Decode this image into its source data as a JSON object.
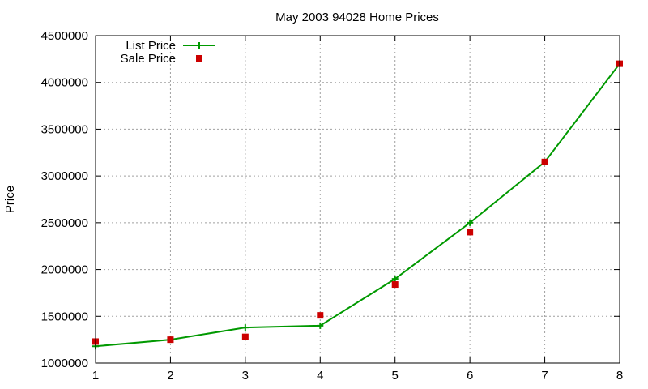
{
  "chart_data": {
    "type": "line",
    "title": "May 2003 94028 Home Prices",
    "xlabel": "",
    "ylabel": "Price",
    "x": [
      1,
      2,
      3,
      4,
      5,
      6,
      7,
      8
    ],
    "xlim": [
      1,
      8
    ],
    "ylim": [
      1000000,
      4500000
    ],
    "xticks": [
      "1",
      "2",
      "3",
      "4",
      "5",
      "6",
      "7",
      "8"
    ],
    "yticks": [
      "1000000",
      "1500000",
      "2000000",
      "2500000",
      "3000000",
      "3500000",
      "4000000",
      "4500000"
    ],
    "grid": true,
    "legend_position": "top-left",
    "series": [
      {
        "name": "List Price",
        "style": "line-with-plus-markers",
        "color": "#009900",
        "values": [
          1180000,
          1250000,
          1380000,
          1400000,
          1900000,
          2500000,
          3150000,
          4200000
        ]
      },
      {
        "name": "Sale Price",
        "style": "square-points",
        "color": "#cc0000",
        "values": [
          1230000,
          1250000,
          1280000,
          1510000,
          1840000,
          2400000,
          3150000,
          4200000
        ]
      }
    ]
  }
}
